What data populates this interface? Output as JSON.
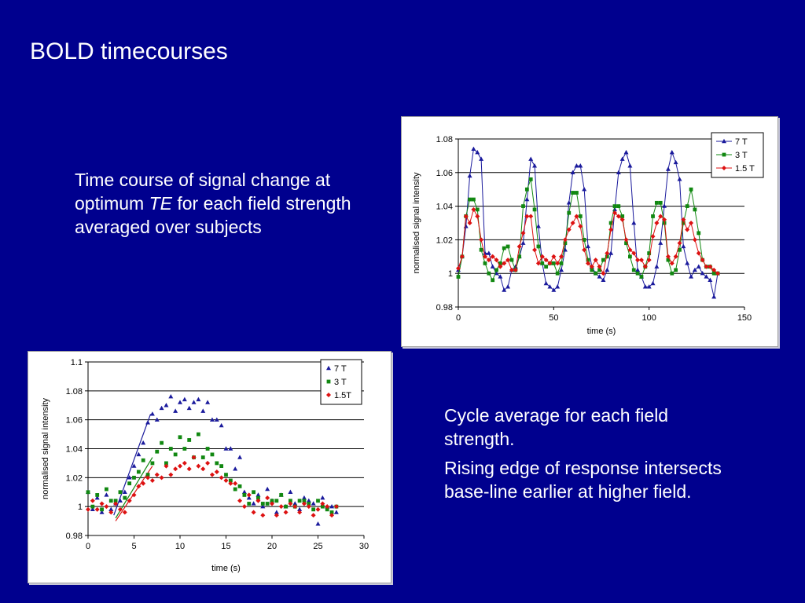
{
  "slide": {
    "title": "BOLD timecourses",
    "left_text": {
      "part1": "Time course of signal change at optimum ",
      "italic": "TE",
      "part2": " for each field strength averaged over subjects"
    },
    "right_text": [
      "Cycle average for each field strength.",
      "Rising edge of response intersects base-line earlier at higher field."
    ]
  },
  "colors": {
    "background": "#00008e",
    "series_7T": "#1a1a9c",
    "series_3T": "#118811",
    "series_1_5T": "#dd1111"
  },
  "chart_data": [
    {
      "type": "line",
      "xlabel": "time (s)",
      "ylabel": "normalised signal intensity",
      "xlim": [
        0,
        150
      ],
      "ylim": [
        0.98,
        1.08
      ],
      "xticks": [
        0,
        50,
        100,
        150
      ],
      "yticks": [
        0.98,
        1,
        1.02,
        1.04,
        1.06,
        1.08
      ],
      "grid": "horizontal",
      "legend": "top-right",
      "series": [
        {
          "name": "7 T",
          "marker": "triangle",
          "color": "#1a1a9c",
          "x": [
            0,
            2,
            4,
            6,
            8,
            10,
            12,
            14,
            16,
            18,
            20,
            22,
            24,
            26,
            28,
            30,
            32,
            34,
            36,
            38,
            40,
            42,
            44,
            46,
            48,
            50,
            52,
            54,
            56,
            58,
            60,
            62,
            64,
            66,
            68,
            70,
            72,
            74,
            76,
            78,
            80,
            82,
            84,
            86,
            88,
            90,
            92,
            94,
            96,
            98,
            100,
            102,
            104,
            106,
            108,
            110,
            112,
            114,
            116,
            118,
            120,
            122,
            124,
            126,
            128,
            130,
            132,
            134,
            136
          ],
          "y": [
            1.002,
            1.01,
            1.028,
            1.058,
            1.074,
            1.072,
            1.068,
            1.012,
            1.012,
            1.004,
            1.0,
            0.998,
            0.99,
            0.992,
            1.002,
            1.004,
            1.01,
            1.018,
            1.044,
            1.068,
            1.064,
            1.028,
            1.006,
            0.994,
            0.992,
            0.99,
            0.992,
            1.002,
            1.014,
            1.042,
            1.06,
            1.064,
            1.064,
            1.05,
            1.016,
            1.004,
            1.0,
            0.998,
            0.996,
            1.002,
            1.012,
            1.038,
            1.06,
            1.068,
            1.072,
            1.064,
            1.03,
            1.002,
            0.998,
            0.992,
            0.992,
            0.994,
            1.004,
            1.018,
            1.04,
            1.062,
            1.072,
            1.066,
            1.056,
            1.016,
            1.006,
            0.998,
            1.002,
            1.004,
            1.0,
            0.998,
            0.996,
            0.986,
            1.0
          ]
        },
        {
          "name": "3 T",
          "marker": "square",
          "color": "#118811",
          "x": [
            0,
            2,
            4,
            6,
            8,
            10,
            12,
            14,
            16,
            18,
            20,
            22,
            24,
            26,
            28,
            30,
            32,
            34,
            36,
            38,
            40,
            42,
            44,
            46,
            48,
            50,
            52,
            54,
            56,
            58,
            60,
            62,
            64,
            66,
            68,
            70,
            72,
            74,
            76,
            78,
            80,
            82,
            84,
            86,
            88,
            90,
            92,
            94,
            96,
            98,
            100,
            102,
            104,
            106,
            108,
            110,
            112,
            114,
            116,
            118,
            120,
            122,
            124,
            126,
            128,
            130,
            132,
            134,
            136
          ],
          "y": [
            0.998,
            1.01,
            1.034,
            1.044,
            1.044,
            1.038,
            1.014,
            1.006,
            1.0,
            0.996,
            1.002,
            1.006,
            1.015,
            1.016,
            1.008,
            1.002,
            1.01,
            1.04,
            1.05,
            1.056,
            1.038,
            1.016,
            1.006,
            1.004,
            1.006,
            1.006,
            1.0,
            1.006,
            1.018,
            1.036,
            1.048,
            1.048,
            1.034,
            1.02,
            1.008,
            1.002,
            1.0,
            1.002,
            1.008,
            1.01,
            1.03,
            1.04,
            1.04,
            1.034,
            1.018,
            1.01,
            1.002,
            1.0,
            0.998,
            1.004,
            1.012,
            1.034,
            1.042,
            1.042,
            1.03,
            1.008,
            1.0,
            1.002,
            1.014,
            1.03,
            1.04,
            1.05,
            1.038,
            1.024,
            1.008,
            1.004,
            1.004,
            1.0,
            1.0
          ]
        },
        {
          "name": "1.5 T",
          "marker": "diamond",
          "color": "#dd1111",
          "x": [
            0,
            2,
            4,
            6,
            8,
            10,
            12,
            14,
            16,
            18,
            20,
            22,
            24,
            26,
            28,
            30,
            32,
            34,
            36,
            38,
            40,
            42,
            44,
            46,
            48,
            50,
            52,
            54,
            56,
            58,
            60,
            62,
            64,
            66,
            68,
            70,
            72,
            74,
            76,
            78,
            80,
            82,
            84,
            86,
            88,
            90,
            92,
            94,
            96,
            98,
            100,
            102,
            104,
            106,
            108,
            110,
            112,
            114,
            116,
            118,
            120,
            122,
            124,
            126,
            128,
            130,
            132,
            134,
            136
          ],
          "y": [
            1.003,
            1.01,
            1.034,
            1.03,
            1.038,
            1.034,
            1.02,
            1.01,
            1.008,
            1.01,
            1.008,
            1.004,
            1.006,
            1.008,
            1.002,
            1.002,
            1.016,
            1.024,
            1.034,
            1.034,
            1.014,
            1.006,
            1.01,
            1.008,
            1.006,
            1.01,
            1.006,
            1.01,
            1.02,
            1.026,
            1.03,
            1.034,
            1.028,
            1.014,
            1.006,
            1.004,
            1.008,
            1.004,
            1.0,
            1.012,
            1.026,
            1.036,
            1.034,
            1.032,
            1.02,
            1.014,
            1.012,
            1.008,
            1.008,
            1.004,
            1.008,
            1.022,
            1.03,
            1.034,
            1.032,
            1.01,
            1.006,
            1.01,
            1.018,
            1.032,
            1.026,
            1.03,
            1.02,
            1.012,
            1.008,
            1.004,
            1.004,
            1.002,
            1.0
          ]
        }
      ]
    },
    {
      "type": "scatter",
      "xlabel": "time (s)",
      "ylabel": "normalised signal intensity",
      "xlim": [
        0,
        30
      ],
      "ylim": [
        0.98,
        1.1
      ],
      "xticks": [
        0,
        5,
        10,
        15,
        20,
        25,
        30
      ],
      "yticks": [
        0.98,
        1,
        1.02,
        1.04,
        1.06,
        1.08,
        1.1
      ],
      "grid": "horizontal",
      "legend": "top-right",
      "series": [
        {
          "name": "7 T",
          "marker": "triangle",
          "color": "#1a1a9c",
          "x": [
            0,
            0.5,
            1,
            1.5,
            2,
            2.5,
            3,
            3.5,
            4,
            4.5,
            5,
            5.5,
            6,
            6.5,
            7,
            7.5,
            8,
            8.5,
            9,
            9.5,
            10,
            10.5,
            11,
            11.5,
            12,
            12.5,
            13,
            13.5,
            14,
            14.5,
            15,
            15.5,
            16,
            16.5,
            17,
            17.5,
            18,
            18.5,
            19,
            19.5,
            20,
            20.5,
            21,
            21.5,
            22,
            22.5,
            23,
            23.5,
            24,
            24.5,
            25,
            25.5,
            26,
            26.5,
            27
          ],
          "y": [
            1.01,
            0.998,
            1.006,
            0.996,
            1.008,
            0.998,
            1.002,
            1.004,
            1.01,
            1.02,
            1.028,
            1.036,
            1.044,
            1.058,
            1.064,
            1.06,
            1.068,
            1.07,
            1.076,
            1.066,
            1.072,
            1.074,
            1.068,
            1.072,
            1.074,
            1.066,
            1.072,
            1.06,
            1.06,
            1.056,
            1.04,
            1.04,
            1.026,
            1.034,
            1.01,
            1.006,
            1.002,
            1.008,
            1.0,
            1.012,
            1.004,
            0.996,
            1.008,
            1.0,
            1.01,
            1.002,
            0.998,
            1.006,
            1.004,
            1.002,
            0.988,
            1.006,
            1.0,
            1.0,
            0.996
          ]
        },
        {
          "name": "3 T",
          "marker": "square",
          "color": "#118811",
          "x": [
            0,
            0.5,
            1,
            1.5,
            2,
            2.5,
            3,
            3.5,
            4,
            4.5,
            5,
            5.5,
            6,
            6.5,
            7,
            7.5,
            8,
            8.5,
            9,
            9.5,
            10,
            10.5,
            11,
            11.5,
            12,
            12.5,
            13,
            13.5,
            14,
            14.5,
            15,
            15.5,
            16,
            16.5,
            17,
            17.5,
            18,
            18.5,
            19,
            19.5,
            20,
            20.5,
            21,
            21.5,
            22,
            22.5,
            23,
            23.5,
            24,
            24.5,
            25,
            25.5,
            26,
            26.5,
            27
          ],
          "y": [
            1.01,
            1.0,
            1.008,
            0.998,
            1.012,
            1.004,
            1.004,
            1.01,
            1.006,
            1.016,
            1.02,
            1.024,
            1.032,
            1.022,
            1.03,
            1.038,
            1.044,
            1.03,
            1.04,
            1.036,
            1.048,
            1.04,
            1.046,
            1.034,
            1.05,
            1.034,
            1.04,
            1.036,
            1.03,
            1.028,
            1.022,
            1.018,
            1.012,
            1.014,
            1.008,
            1.002,
            1.01,
            1.006,
            1.002,
            1.002,
            1.004,
            1.004,
            1.008,
            1.0,
            1.004,
            1.0,
            1.004,
            1.004,
            1.002,
            0.998,
            1.004,
            1.0,
            0.998,
            0.996,
            1.0
          ]
        },
        {
          "name": "1.5T",
          "marker": "diamond",
          "color": "#dd1111",
          "x": [
            0,
            0.5,
            1,
            1.5,
            2,
            2.5,
            3,
            3.5,
            4,
            4.5,
            5,
            5.5,
            6,
            6.5,
            7,
            7.5,
            8,
            8.5,
            9,
            9.5,
            10,
            10.5,
            11,
            11.5,
            12,
            12.5,
            13,
            13.5,
            14,
            14.5,
            15,
            15.5,
            16,
            16.5,
            17,
            17.5,
            18,
            18.5,
            19,
            19.5,
            20,
            20.5,
            21,
            21.5,
            22,
            22.5,
            23,
            23.5,
            24,
            24.5,
            25,
            25.5,
            26,
            26.5,
            27
          ],
          "y": [
            0.998,
            1.004,
            0.998,
            1.002,
            1.0,
            0.996,
            1.002,
            0.998,
            0.996,
            1.004,
            1.008,
            1.014,
            1.016,
            1.02,
            1.018,
            1.022,
            1.02,
            1.028,
            1.022,
            1.026,
            1.028,
            1.03,
            1.026,
            1.034,
            1.028,
            1.026,
            1.03,
            1.022,
            1.024,
            1.02,
            1.018,
            1.016,
            1.016,
            1.004,
            1.0,
            1.008,
            0.996,
            1.004,
            0.994,
            1.006,
            1.002,
            0.994,
            1.0,
            0.996,
            1.002,
            1.0,
            0.996,
            1.002,
            1.0,
            0.994,
            0.998,
            1.002,
            1.0,
            0.994,
            1.0
          ]
        }
      ],
      "fit_lines": [
        {
          "series": "7 T",
          "color": "#1a1a9c",
          "x": [
            2.8,
            6.8
          ],
          "y": [
            0.994,
            1.064
          ]
        },
        {
          "series": "3 T",
          "color": "#118811",
          "x": [
            3.0,
            7.0
          ],
          "y": [
            0.992,
            1.034
          ]
        },
        {
          "series": "1.5T",
          "color": "#dd1111",
          "x": [
            3.0,
            7.0
          ],
          "y": [
            0.99,
            1.028
          ]
        }
      ]
    }
  ]
}
